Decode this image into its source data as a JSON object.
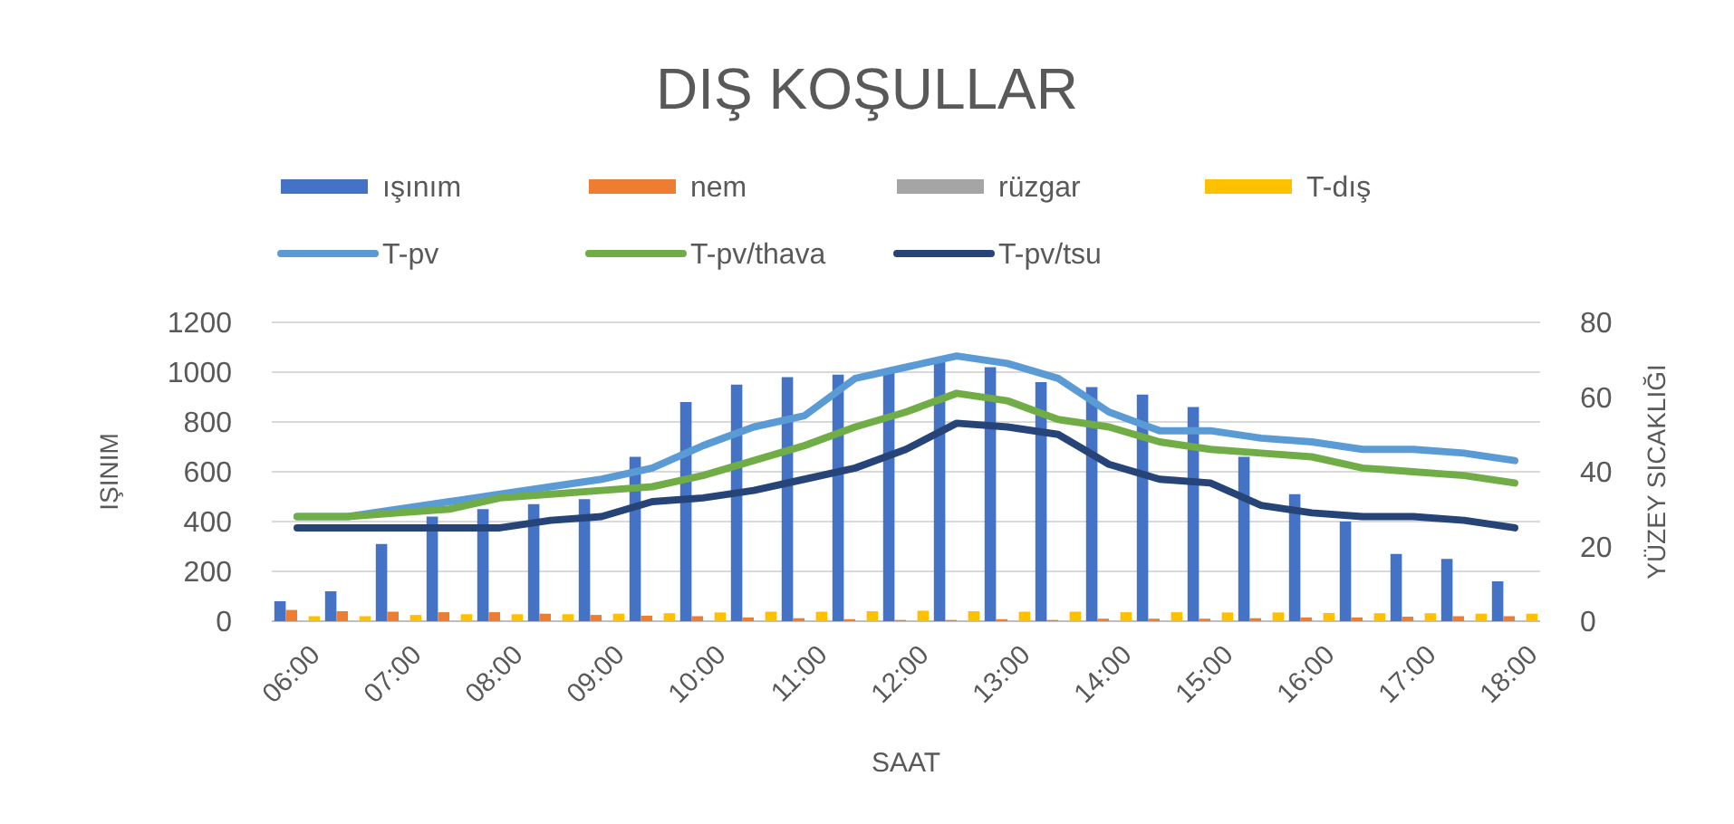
{
  "chart_data": {
    "type": "bar",
    "title": "DIŞ KOŞULLAR",
    "xlabel": "SAAT",
    "ylabel": "IŞINIM",
    "y2label": "YÜZEY SICAKLIĞI",
    "categories": [
      "06:00",
      null,
      "07:00",
      null,
      "08:00",
      null,
      "09:00",
      null,
      "10:00",
      null,
      "11:00",
      null,
      "12:00",
      null,
      "13:00",
      null,
      "14:00",
      null,
      "15:00",
      null,
      "16:00",
      null,
      "17:00",
      null,
      "18:00"
    ],
    "series": [
      {
        "name": "ışınım",
        "color": "#4472c4",
        "values": [
          80,
          120,
          310,
          420,
          450,
          470,
          490,
          660,
          880,
          950,
          980,
          990,
          1000,
          1040,
          1020,
          960,
          940,
          910,
          860,
          660,
          510,
          400,
          270,
          250,
          160
        ]
      },
      {
        "name": "nem",
        "color": "#ed7d31",
        "values": [
          45,
          40,
          38,
          36,
          36,
          30,
          25,
          22,
          20,
          15,
          12,
          8,
          5,
          5,
          8,
          5,
          10,
          10,
          10,
          12,
          15,
          15,
          18,
          20,
          20
        ]
      },
      {
        "name": "rüzgar",
        "color": "#a5a5a5",
        "values": [
          null,
          null,
          null,
          null,
          null,
          null,
          null,
          null,
          null,
          null,
          null,
          null,
          null,
          null,
          null,
          null,
          null,
          null,
          null,
          null,
          null,
          null,
          null,
          null,
          null
        ]
      },
      {
        "name": "T-dış",
        "color": "#ffc000",
        "values": [
          20,
          20,
          25,
          28,
          28,
          28,
          30,
          32,
          35,
          38,
          38,
          40,
          42,
          40,
          38,
          38,
          36,
          36,
          35,
          35,
          33,
          32,
          32,
          30,
          30
        ]
      },
      {
        "name": "T-pv",
        "type": "line",
        "axis": "y2",
        "color": "#5b9bd5",
        "values": [
          28,
          28,
          30,
          32,
          34,
          36,
          38,
          41,
          47,
          52,
          55,
          65,
          68,
          71,
          69,
          65,
          56,
          51,
          51,
          49,
          48,
          46,
          46,
          45,
          43
        ]
      },
      {
        "name": "T-pv/thava",
        "type": "line",
        "axis": "y2",
        "color": "#70ad47",
        "values": [
          28,
          28,
          29,
          30,
          33,
          34,
          35,
          36,
          39,
          43,
          47,
          52,
          56,
          61,
          59,
          54,
          52,
          48,
          46,
          45,
          44,
          41,
          40,
          39,
          37
        ]
      },
      {
        "name": "T-pv/tsu",
        "type": "line",
        "axis": "y2",
        "color": "#264478",
        "values": [
          25,
          25,
          25,
          25,
          25,
          27,
          28,
          32,
          33,
          35,
          38,
          41,
          46,
          53,
          52,
          50,
          42,
          38,
          37,
          31,
          29,
          28,
          28,
          27,
          25
        ]
      }
    ],
    "ylim": [
      0,
      1200
    ],
    "yticks": [
      0,
      200,
      400,
      600,
      800,
      1000,
      1200
    ],
    "y2lim": [
      0,
      80
    ],
    "y2ticks": [
      0,
      20,
      40,
      60,
      80
    ],
    "grid": "y",
    "legend": "top",
    "line_style": "solid",
    "marker": "none"
  }
}
